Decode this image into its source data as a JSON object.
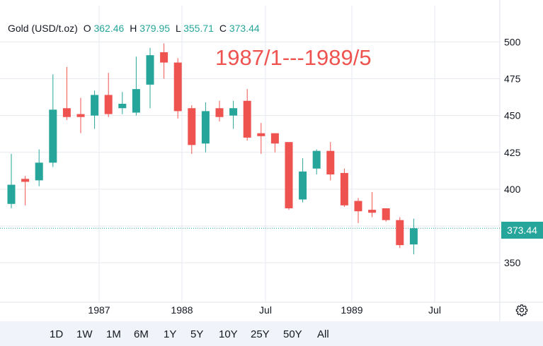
{
  "legend": {
    "symbol": "Gold (USD/t.oz)",
    "o_label": "O",
    "o_value": "362.46",
    "h_label": "H",
    "h_value": "379.95",
    "l_label": "L",
    "l_value": "355.71",
    "c_label": "C",
    "c_value": "373.44"
  },
  "annotation": "1987/1---1989/5",
  "last_price_tag": "373.44",
  "ranges": [
    "1D",
    "1W",
    "1M",
    "6M",
    "1Y",
    "5Y",
    "10Y",
    "25Y",
    "50Y",
    "All"
  ],
  "icons": {
    "settings": "gear-icon"
  },
  "colors": {
    "up": "#26a69a",
    "down": "#ef5350",
    "grid": "#e6e9ef",
    "axis_text": "#131722"
  },
  "chart_data": {
    "type": "candlestick",
    "title": "",
    "xlabel": "",
    "ylabel": "",
    "ylim": [
      300,
      515
    ],
    "y_ticks": [
      350,
      375,
      400,
      425,
      450,
      475,
      500
    ],
    "x_tick_labels": [
      "1987",
      "1988",
      "Jul",
      "1989",
      "Jul"
    ],
    "grid": true,
    "last_price_line": 373.44,
    "series": [
      {
        "open": 390,
        "high": 424,
        "low": 387,
        "close": 403
      },
      {
        "open": 407,
        "high": 409,
        "low": 389,
        "close": 405
      },
      {
        "open": 406,
        "high": 427,
        "low": 402,
        "close": 418
      },
      {
        "open": 418,
        "high": 478,
        "low": 415,
        "close": 454
      },
      {
        "open": 455,
        "high": 483,
        "low": 447,
        "close": 449
      },
      {
        "open": 451,
        "high": 462,
        "low": 438,
        "close": 449
      },
      {
        "open": 450,
        "high": 467,
        "low": 441,
        "close": 464
      },
      {
        "open": 464,
        "high": 479,
        "low": 449,
        "close": 451
      },
      {
        "open": 455,
        "high": 466,
        "low": 451,
        "close": 458
      },
      {
        "open": 452,
        "high": 490,
        "low": 450,
        "close": 468
      },
      {
        "open": 471,
        "high": 496,
        "low": 455,
        "close": 491
      },
      {
        "open": 493,
        "high": 499,
        "low": 475,
        "close": 486
      },
      {
        "open": 486,
        "high": 489,
        "low": 448,
        "close": 453
      },
      {
        "open": 455,
        "high": 457,
        "low": 424,
        "close": 430
      },
      {
        "open": 431,
        "high": 459,
        "low": 425,
        "close": 453
      },
      {
        "open": 455,
        "high": 460,
        "low": 446,
        "close": 449
      },
      {
        "open": 450,
        "high": 460,
        "low": 441,
        "close": 455
      },
      {
        "open": 460,
        "high": 468,
        "low": 433,
        "close": 435
      },
      {
        "open": 438,
        "high": 445,
        "low": 424,
        "close": 436
      },
      {
        "open": 438,
        "high": 438,
        "low": 425,
        "close": 431
      },
      {
        "open": 432,
        "high": 431,
        "low": 386,
        "close": 387
      },
      {
        "open": 393,
        "high": 421,
        "low": 391,
        "close": 412
      },
      {
        "open": 414,
        "high": 427,
        "low": 410,
        "close": 426
      },
      {
        "open": 426,
        "high": 432,
        "low": 406,
        "close": 410
      },
      {
        "open": 411,
        "high": 414,
        "low": 388,
        "close": 389
      },
      {
        "open": 392,
        "high": 394,
        "low": 377,
        "close": 385
      },
      {
        "open": 386,
        "high": 398,
        "low": 381,
        "close": 384
      },
      {
        "open": 387,
        "high": 387,
        "low": 378,
        "close": 379
      },
      {
        "open": 379,
        "high": 381,
        "low": 360,
        "close": 362
      },
      {
        "open": 362.46,
        "high": 379.95,
        "low": 355.71,
        "close": 373.44
      }
    ]
  }
}
